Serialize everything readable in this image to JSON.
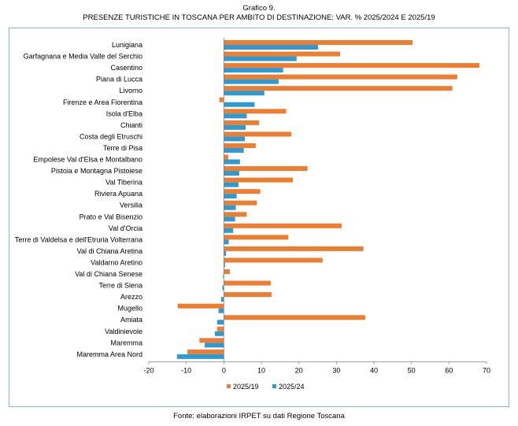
{
  "title_line_1": "Grafico 9.",
  "title_line_2": "PRESENZE TURISTICHE IN TOSCANA PER AMBITO DI DESTINAZIONE: VAR. % 2025/2024 E 2025/19",
  "source_note": "Fonte: elaborazioni IRPET su dati Regione Toscana",
  "colors": {
    "s2025_19": "#ed7d31",
    "s2025_24": "#2e9ad0"
  },
  "chart_data": {
    "type": "bar",
    "orientation": "horizontal",
    "categories": [
      "Lunigiana",
      "Garfagnana e Media Valle del Serchio",
      "Casentino",
      "Piana di Lucca",
      "Livorno",
      "Firenze e Area Fiorentina",
      "Isola d'Elba",
      "Chianti",
      "Costa degli Etruschi",
      "Terre di Pisa",
      "Empolese Val d'Elsa e Montalbano",
      "Pistoia e Montagna Pistoiese",
      "Val Tiberina",
      "Riviera Apuana",
      "Versilia",
      "Prato e Val Bisenzio",
      "Val d'Orcia",
      "Terre di Valdelsa e dell'Etruria Volterrana",
      "Val di Chiana Aretina",
      "Valdarno Aretino",
      "Val di Chiana Senese",
      "Terre di Siena",
      "Arezzo",
      "Mugello",
      "Amiata",
      "Valdinievole",
      "Maremma",
      "Maremma Area Nord"
    ],
    "series": [
      {
        "name": "2025/19",
        "values": [
          50.3,
          31.0,
          68.1,
          62.2,
          60.9,
          -1.2,
          16.6,
          9.4,
          18.0,
          8.5,
          1.2,
          22.3,
          18.4,
          9.7,
          8.8,
          6.1,
          31.4,
          17.2,
          37.2,
          26.3,
          1.6,
          12.5,
          12.7,
          -12.3,
          37.7,
          -1.8,
          -6.5,
          -9.7
        ]
      },
      {
        "name": "2025/24",
        "values": [
          25.1,
          19.4,
          15.8,
          14.6,
          10.8,
          8.2,
          6.1,
          5.8,
          5.6,
          5.3,
          4.3,
          4.1,
          3.9,
          3.4,
          3.2,
          3.0,
          2.5,
          1.3,
          0.6,
          0.3,
          -0.2,
          -0.4,
          -0.7,
          -1.4,
          -1.8,
          -2.4,
          -5.1,
          -12.5
        ]
      }
    ],
    "xlim": [
      -20,
      70
    ],
    "xticks": [
      -20,
      -10,
      0,
      10,
      20,
      30,
      40,
      50,
      60,
      70
    ],
    "grid": false,
    "legend_position": "bottom"
  }
}
